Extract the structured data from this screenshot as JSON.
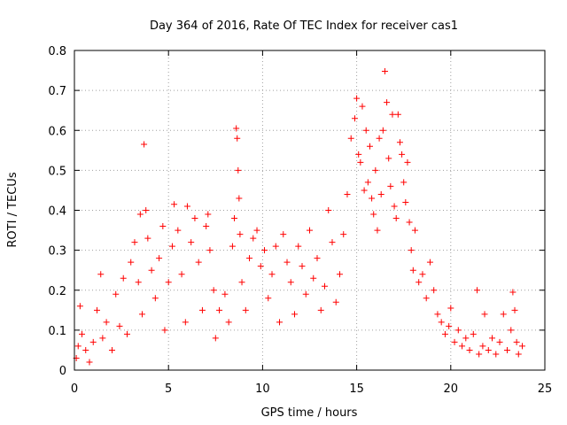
{
  "chart_data": {
    "type": "scatter",
    "title": "Day 364 of 2016, Rate Of TEC Index for receiver cas1",
    "xlabel": "GPS time / hours",
    "ylabel": "ROTI / TECUs",
    "xlim": [
      0,
      25
    ],
    "ylim": [
      0,
      0.8
    ],
    "x_ticks": [
      "0",
      "5",
      "10",
      "15",
      "20",
      "25"
    ],
    "y_ticks": [
      "0",
      "0.1",
      "0.2",
      "0.3",
      "0.4",
      "0.5",
      "0.6",
      "0.7",
      "0.8"
    ],
    "grid": true,
    "marker": "+",
    "color": "#ff0000",
    "series": [
      {
        "name": "ROTI",
        "points": [
          [
            0.1,
            0.03
          ],
          [
            0.2,
            0.06
          ],
          [
            0.3,
            0.16
          ],
          [
            0.4,
            0.09
          ],
          [
            0.6,
            0.05
          ],
          [
            0.8,
            0.02
          ],
          [
            1.0,
            0.07
          ],
          [
            1.2,
            0.15
          ],
          [
            1.4,
            0.24
          ],
          [
            1.5,
            0.08
          ],
          [
            1.7,
            0.12
          ],
          [
            2.0,
            0.05
          ],
          [
            2.2,
            0.19
          ],
          [
            2.4,
            0.11
          ],
          [
            2.6,
            0.23
          ],
          [
            2.8,
            0.09
          ],
          [
            3.0,
            0.27
          ],
          [
            3.2,
            0.32
          ],
          [
            3.4,
            0.22
          ],
          [
            3.5,
            0.39
          ],
          [
            3.6,
            0.14
          ],
          [
            3.7,
            0.565
          ],
          [
            3.8,
            0.4
          ],
          [
            3.9,
            0.33
          ],
          [
            4.1,
            0.25
          ],
          [
            4.3,
            0.18
          ],
          [
            4.5,
            0.28
          ],
          [
            4.7,
            0.36
          ],
          [
            4.8,
            0.1
          ],
          [
            5.0,
            0.22
          ],
          [
            5.2,
            0.31
          ],
          [
            5.3,
            0.415
          ],
          [
            5.5,
            0.35
          ],
          [
            5.7,
            0.24
          ],
          [
            5.9,
            0.12
          ],
          [
            6.0,
            0.41
          ],
          [
            6.2,
            0.32
          ],
          [
            6.4,
            0.38
          ],
          [
            6.6,
            0.27
          ],
          [
            6.8,
            0.15
          ],
          [
            7.0,
            0.36
          ],
          [
            7.1,
            0.39
          ],
          [
            7.2,
            0.3
          ],
          [
            7.4,
            0.2
          ],
          [
            7.5,
            0.08
          ],
          [
            7.7,
            0.15
          ],
          [
            8.0,
            0.19
          ],
          [
            8.2,
            0.12
          ],
          [
            8.4,
            0.31
          ],
          [
            8.5,
            0.38
          ],
          [
            8.6,
            0.605
          ],
          [
            8.65,
            0.58
          ],
          [
            8.7,
            0.5
          ],
          [
            8.75,
            0.43
          ],
          [
            8.8,
            0.34
          ],
          [
            8.9,
            0.22
          ],
          [
            9.1,
            0.15
          ],
          [
            9.3,
            0.28
          ],
          [
            9.5,
            0.33
          ],
          [
            9.7,
            0.35
          ],
          [
            9.9,
            0.26
          ],
          [
            10.1,
            0.3
          ],
          [
            10.3,
            0.18
          ],
          [
            10.5,
            0.24
          ],
          [
            10.7,
            0.31
          ],
          [
            10.9,
            0.12
          ],
          [
            11.1,
            0.34
          ],
          [
            11.3,
            0.27
          ],
          [
            11.5,
            0.22
          ],
          [
            11.7,
            0.14
          ],
          [
            11.9,
            0.31
          ],
          [
            12.1,
            0.26
          ],
          [
            12.3,
            0.19
          ],
          [
            12.5,
            0.35
          ],
          [
            12.7,
            0.23
          ],
          [
            12.9,
            0.28
          ],
          [
            13.1,
            0.15
          ],
          [
            13.3,
            0.21
          ],
          [
            13.5,
            0.4
          ],
          [
            13.7,
            0.32
          ],
          [
            13.9,
            0.17
          ],
          [
            14.1,
            0.24
          ],
          [
            14.3,
            0.34
          ],
          [
            14.5,
            0.44
          ],
          [
            14.7,
            0.58
          ],
          [
            14.9,
            0.63
          ],
          [
            15.0,
            0.68
          ],
          [
            15.1,
            0.54
          ],
          [
            15.2,
            0.52
          ],
          [
            15.3,
            0.66
          ],
          [
            15.4,
            0.45
          ],
          [
            15.5,
            0.6
          ],
          [
            15.6,
            0.47
          ],
          [
            15.7,
            0.56
          ],
          [
            15.8,
            0.43
          ],
          [
            15.9,
            0.39
          ],
          [
            16.0,
            0.5
          ],
          [
            16.1,
            0.35
          ],
          [
            16.2,
            0.58
          ],
          [
            16.3,
            0.44
          ],
          [
            16.4,
            0.6
          ],
          [
            16.5,
            0.748
          ],
          [
            16.6,
            0.67
          ],
          [
            16.7,
            0.53
          ],
          [
            16.8,
            0.46
          ],
          [
            16.9,
            0.64
          ],
          [
            17.0,
            0.41
          ],
          [
            17.1,
            0.38
          ],
          [
            17.2,
            0.64
          ],
          [
            17.3,
            0.57
          ],
          [
            17.4,
            0.54
          ],
          [
            17.5,
            0.47
          ],
          [
            17.6,
            0.42
          ],
          [
            17.7,
            0.52
          ],
          [
            17.8,
            0.37
          ],
          [
            17.9,
            0.3
          ],
          [
            18.0,
            0.25
          ],
          [
            18.1,
            0.35
          ],
          [
            18.3,
            0.22
          ],
          [
            18.5,
            0.24
          ],
          [
            18.7,
            0.18
          ],
          [
            18.9,
            0.27
          ],
          [
            19.1,
            0.2
          ],
          [
            19.3,
            0.14
          ],
          [
            19.5,
            0.12
          ],
          [
            19.7,
            0.09
          ],
          [
            19.9,
            0.11
          ],
          [
            20.0,
            0.155
          ],
          [
            20.2,
            0.07
          ],
          [
            20.4,
            0.1
          ],
          [
            20.6,
            0.06
          ],
          [
            20.8,
            0.08
          ],
          [
            21.0,
            0.05
          ],
          [
            21.2,
            0.09
          ],
          [
            21.4,
            0.2
          ],
          [
            21.5,
            0.04
          ],
          [
            21.7,
            0.06
          ],
          [
            21.8,
            0.14
          ],
          [
            22.0,
            0.05
          ],
          [
            22.2,
            0.08
          ],
          [
            22.4,
            0.04
          ],
          [
            22.6,
            0.07
          ],
          [
            22.8,
            0.14
          ],
          [
            23.0,
            0.05
          ],
          [
            23.2,
            0.1
          ],
          [
            23.3,
            0.195
          ],
          [
            23.4,
            0.15
          ],
          [
            23.5,
            0.07
          ],
          [
            23.6,
            0.04
          ],
          [
            23.8,
            0.06
          ]
        ]
      }
    ]
  }
}
